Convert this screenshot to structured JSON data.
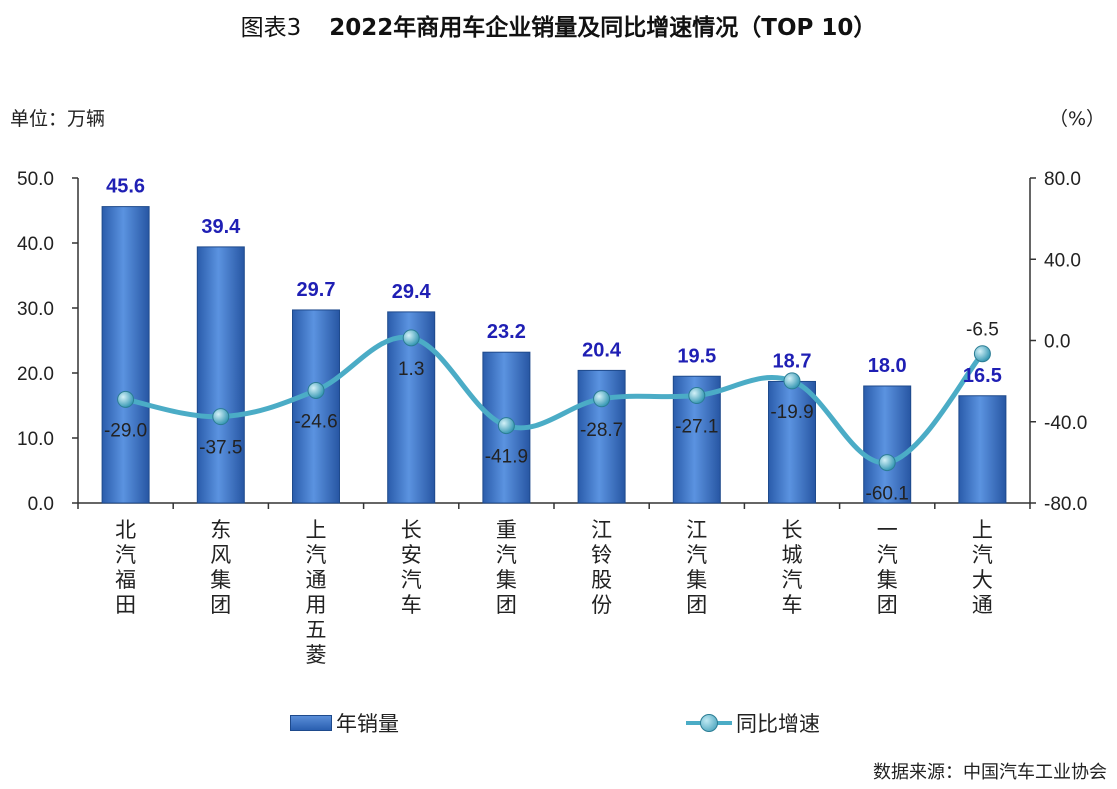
{
  "title": {
    "prefix": "图表3",
    "main": "2022年商用车企业销量及同比增速情况（TOP 10）"
  },
  "units": {
    "left": "单位：万辆",
    "right": "（%）"
  },
  "source": "数据来源：中国汽车工业协会",
  "legend": {
    "bar": "年销量",
    "line": "同比增速"
  },
  "colors": {
    "bar": "#2f68bd",
    "line": "#4bacc6",
    "bar_label": "#1f1fb4"
  },
  "chart_data": {
    "type": "bar",
    "categories": [
      "北汽福田",
      "东风集团",
      "上汽通用五菱",
      "长安汽车",
      "重汽集团",
      "江铃股份",
      "江汽集团",
      "长城汽车",
      "一汽集团",
      "上汽大通"
    ],
    "series": [
      {
        "name": "年销量",
        "type": "bar",
        "axis": "left",
        "values": [
          45.6,
          39.4,
          29.7,
          29.4,
          23.2,
          20.4,
          19.5,
          18.7,
          18.0,
          16.5
        ]
      },
      {
        "name": "同比增速",
        "type": "line",
        "axis": "right",
        "values": [
          -29.0,
          -37.5,
          -24.6,
          1.3,
          -41.9,
          -28.7,
          -27.1,
          -19.9,
          -60.1,
          -6.5
        ]
      }
    ],
    "y_left": {
      "range": [
        0,
        50
      ],
      "ticks": [
        "0.0",
        "10.0",
        "20.0",
        "30.0",
        "40.0",
        "50.0"
      ]
    },
    "y_right": {
      "range": [
        -80,
        80
      ],
      "ticks": [
        "-80.0",
        "-40.0",
        "0.0",
        "40.0",
        "80.0"
      ]
    },
    "bar_labels": [
      "45.6",
      "39.4",
      "29.7",
      "29.4",
      "23.2",
      "20.4",
      "19.5",
      "18.7",
      "18.0",
      "16.5"
    ],
    "line_labels": [
      "-29.0",
      "-37.5",
      "-24.6",
      "1.3",
      "-41.9",
      "-28.7",
      "-27.1",
      "-19.9",
      "-60.1",
      "-6.5"
    ],
    "grid": false,
    "legend_position": "bottom"
  }
}
